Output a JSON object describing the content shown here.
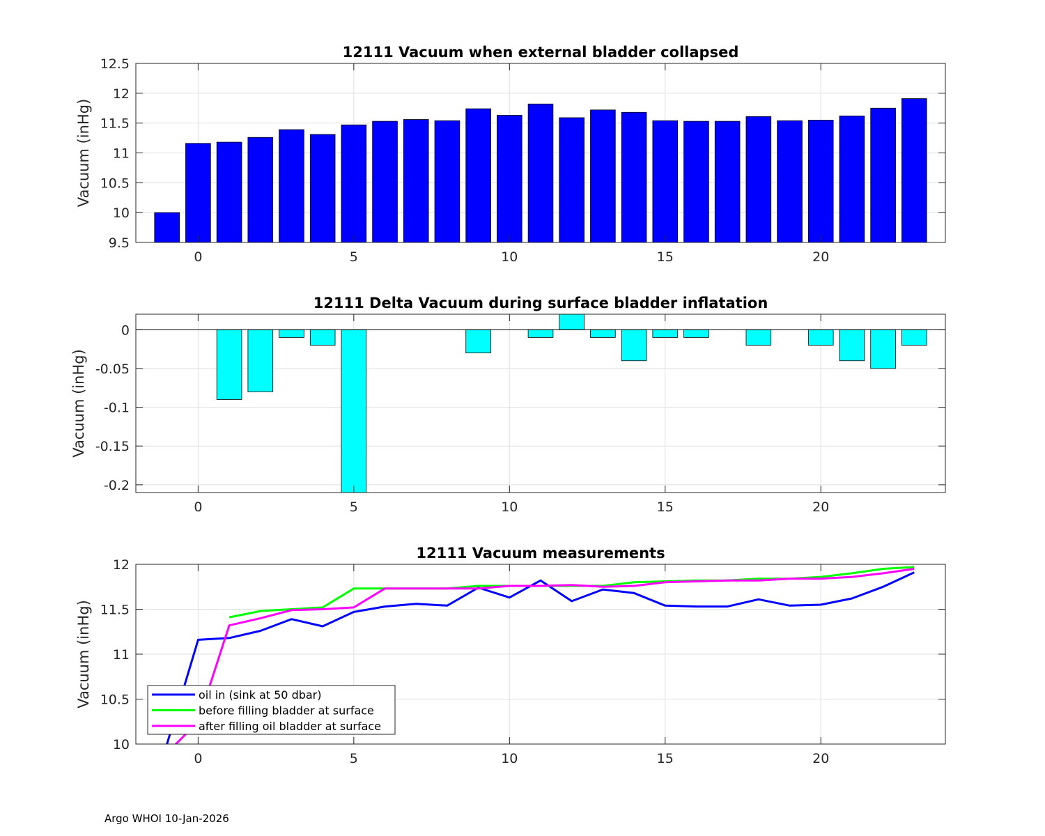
{
  "footer": "Argo WHOI 10-Jan-2026",
  "chart_data": [
    {
      "type": "bar",
      "title": "12111 Vacuum when external bladder collapsed",
      "xlabel": "",
      "ylabel": "Vacuum (inHg)",
      "xlim": [
        -2,
        24
      ],
      "ylim": [
        9.5,
        12.5
      ],
      "xticks": [
        0,
        5,
        10,
        15,
        20
      ],
      "yticks": [
        9.5,
        10,
        10.5,
        11,
        11.5,
        12,
        12.5
      ],
      "ytick_labels": [
        "9.5",
        "10",
        "10.5",
        "11",
        "11.5",
        "12",
        "12.5"
      ],
      "grid": true,
      "color": "#0000ff",
      "x": [
        -1,
        0,
        1,
        2,
        3,
        4,
        5,
        6,
        7,
        8,
        9,
        10,
        11,
        12,
        13,
        14,
        15,
        16,
        17,
        18,
        19,
        20,
        21,
        22,
        23
      ],
      "values": [
        10.0,
        11.16,
        11.18,
        11.26,
        11.39,
        11.31,
        11.47,
        11.53,
        11.56,
        11.54,
        11.74,
        11.63,
        11.82,
        11.59,
        11.72,
        11.68,
        11.54,
        11.53,
        11.53,
        11.61,
        11.54,
        11.55,
        11.62,
        11.75,
        11.91
      ]
    },
    {
      "type": "bar",
      "title": "12111 Delta Vacuum during surface bladder inflatation",
      "xlabel": "",
      "ylabel": "Vacuum (inHg)",
      "xlim": [
        -2,
        24
      ],
      "ylim": [
        -0.21,
        0.02
      ],
      "xticks": [
        0,
        5,
        10,
        15,
        20
      ],
      "yticks": [
        -0.2,
        -0.15,
        -0.1,
        -0.05,
        0
      ],
      "ytick_labels": [
        "-0.2",
        "-0.15",
        "-0.1",
        "-0.05",
        "0"
      ],
      "grid": true,
      "color": "#00ffff",
      "x": [
        1,
        2,
        3,
        4,
        5,
        6,
        7,
        8,
        9,
        10,
        11,
        12,
        13,
        14,
        15,
        16,
        17,
        18,
        19,
        20,
        21,
        22,
        23
      ],
      "values": [
        -0.09,
        -0.08,
        -0.01,
        -0.02,
        -0.21,
        0,
        0,
        0,
        -0.03,
        0,
        -0.01,
        0.02,
        -0.01,
        -0.04,
        -0.01,
        -0.01,
        0,
        -0.02,
        0,
        -0.02,
        -0.04,
        -0.05,
        -0.02
      ]
    },
    {
      "type": "line",
      "title": "12111 Vacuum measurements",
      "xlabel": "",
      "ylabel": "Vacuum (inHg)",
      "xlim": [
        -2,
        24
      ],
      "ylim": [
        10,
        12
      ],
      "xticks": [
        0,
        5,
        10,
        15,
        20
      ],
      "yticks": [
        10,
        10.5,
        11,
        11.5,
        12
      ],
      "ytick_labels": [
        "10",
        "10.5",
        "11",
        "11.5",
        "12"
      ],
      "grid": true,
      "legend_position": "bottom-left",
      "series": [
        {
          "name": "oil in (sink at 50 dbar)",
          "color": "#0000ff",
          "x": [
            -1,
            0,
            1,
            2,
            3,
            4,
            5,
            6,
            7,
            8,
            9,
            10,
            11,
            12,
            13,
            14,
            15,
            16,
            17,
            18,
            19,
            20,
            21,
            22,
            23
          ],
          "values": [
            10.0,
            11.16,
            11.18,
            11.26,
            11.39,
            11.31,
            11.47,
            11.53,
            11.56,
            11.54,
            11.74,
            11.63,
            11.82,
            11.59,
            11.72,
            11.68,
            11.54,
            11.53,
            11.53,
            11.61,
            11.54,
            11.55,
            11.62,
            11.75,
            11.91
          ]
        },
        {
          "name": "before filling bladder at surface",
          "color": "#00ff00",
          "x": [
            1,
            2,
            3,
            4,
            5,
            6,
            7,
            8,
            9,
            10,
            11,
            12,
            13,
            14,
            15,
            16,
            17,
            18,
            19,
            20,
            21,
            22,
            23
          ],
          "values": [
            11.41,
            11.48,
            11.5,
            11.52,
            11.73,
            11.73,
            11.73,
            11.73,
            11.76,
            11.76,
            11.76,
            11.76,
            11.76,
            11.8,
            11.81,
            11.82,
            11.82,
            11.84,
            11.84,
            11.86,
            11.9,
            11.95,
            11.97
          ]
        },
        {
          "name": "after filling oil bladder at surface",
          "color": "#ff00ff",
          "x": [
            -1,
            0,
            1,
            2,
            3,
            4,
            5,
            6,
            7,
            8,
            9,
            10,
            11,
            12,
            13,
            14,
            15,
            16,
            17,
            18,
            19,
            20,
            21,
            22,
            23
          ],
          "values": [
            9.9,
            10.25,
            11.32,
            11.4,
            11.49,
            11.5,
            11.52,
            11.73,
            11.73,
            11.73,
            11.73,
            11.76,
            11.76,
            11.77,
            11.75,
            11.76,
            11.8,
            11.81,
            11.82,
            11.82,
            11.84,
            11.84,
            11.86,
            11.9,
            11.95
          ]
        }
      ]
    }
  ]
}
